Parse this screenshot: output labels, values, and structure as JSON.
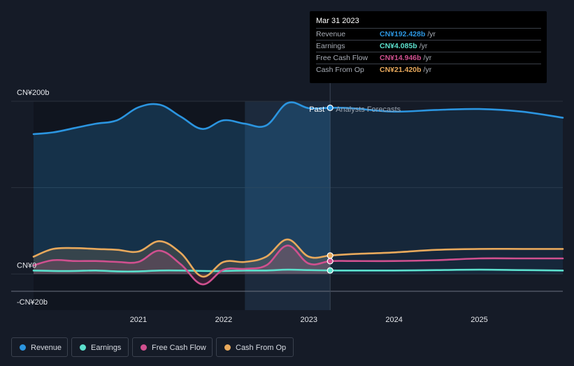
{
  "chart_data": {
    "type": "area",
    "title": "",
    "y_ticks": [
      {
        "label": "CN¥200b",
        "value": 200
      },
      {
        "label": "CN¥0",
        "value": 0
      },
      {
        "label": "-CN¥20b",
        "value": -20
      }
    ],
    "x_ticks": [
      {
        "label": "2021",
        "value": 2021.0
      },
      {
        "label": "2022",
        "value": 2022.0
      },
      {
        "label": "2023",
        "value": 2023.0
      },
      {
        "label": "2024",
        "value": 2024.0
      },
      {
        "label": "2025",
        "value": 2025.0
      }
    ],
    "xlim": [
      2019.77,
      2025.98
    ],
    "ylim": [
      -20,
      200
    ],
    "past_label": "Past",
    "forecast_label": "Analysts Forecasts",
    "divider_x": 2023.25,
    "highlight_start": 2022.25,
    "past_dark_end": 2022.25,
    "series": [
      {
        "key": "revenue",
        "name": "Revenue",
        "color": "#2b95e0",
        "x": [
          2019.77,
          2020.0,
          2020.25,
          2020.5,
          2020.75,
          2021.0,
          2021.25,
          2021.5,
          2021.75,
          2022.0,
          2022.25,
          2022.5,
          2022.75,
          2023.0,
          2023.25,
          2023.5,
          2024.0,
          2024.5,
          2025.0,
          2025.5,
          2025.98
        ],
        "y": [
          162,
          164,
          169,
          174,
          178,
          193,
          196,
          182,
          168,
          178,
          174,
          172,
          198,
          192,
          192.4,
          192,
          188,
          190,
          191,
          188,
          181
        ]
      },
      {
        "key": "earnings",
        "name": "Earnings",
        "color": "#5ce0cd",
        "x": [
          2019.77,
          2020.0,
          2020.25,
          2020.5,
          2020.75,
          2021.0,
          2021.25,
          2021.5,
          2021.75,
          2022.0,
          2022.25,
          2022.5,
          2022.75,
          2023.0,
          2023.25,
          2023.5,
          2024.0,
          2024.5,
          2025.0,
          2025.5,
          2025.98
        ],
        "y": [
          4,
          3.5,
          3.5,
          4,
          3,
          3,
          4,
          4,
          3.5,
          3.5,
          4,
          4,
          5,
          4.5,
          4.1,
          4,
          4,
          4.5,
          5,
          4.5,
          4
        ]
      },
      {
        "key": "fcf",
        "name": "Free Cash Flow",
        "color": "#d0508f",
        "x": [
          2019.77,
          2020.0,
          2020.25,
          2020.5,
          2020.75,
          2021.0,
          2021.25,
          2021.5,
          2021.75,
          2022.0,
          2022.25,
          2022.5,
          2022.75,
          2023.0,
          2023.25,
          2023.5,
          2024.0,
          2024.5,
          2025.0,
          2025.5,
          2025.98
        ],
        "y": [
          10,
          16,
          15,
          15,
          14,
          14,
          27,
          11,
          -12,
          5,
          6,
          10,
          33,
          12,
          14.9,
          15,
          15,
          16,
          18,
          18,
          18
        ]
      },
      {
        "key": "cfo",
        "name": "Cash From Op",
        "color": "#e8a95c",
        "x": [
          2019.77,
          2020.0,
          2020.25,
          2020.5,
          2020.75,
          2021.0,
          2021.25,
          2021.5,
          2021.75,
          2022.0,
          2022.25,
          2022.5,
          2022.75,
          2023.0,
          2023.25,
          2023.5,
          2024.0,
          2024.5,
          2025.0,
          2025.5,
          2025.98
        ],
        "y": [
          20,
          29,
          30,
          29,
          28,
          26,
          38,
          24,
          -3,
          14,
          14,
          20,
          40,
          20,
          21.4,
          23,
          25,
          28,
          29,
          29,
          29
        ]
      }
    ]
  },
  "tooltip": {
    "date": "Mar 31 2023",
    "rows": [
      {
        "label": "Revenue",
        "value": "CN¥192.428b",
        "unit": "/yr",
        "color": "#2b95e0"
      },
      {
        "label": "Earnings",
        "value": "CN¥4.085b",
        "unit": "/yr",
        "color": "#5ce0cd"
      },
      {
        "label": "Free Cash Flow",
        "value": "CN¥14.946b",
        "unit": "/yr",
        "color": "#d0508f"
      },
      {
        "label": "Cash From Op",
        "value": "CN¥21.420b",
        "unit": "/yr",
        "color": "#e8a95c"
      }
    ]
  },
  "legend": [
    {
      "label": "Revenue",
      "color": "#2b95e0"
    },
    {
      "label": "Earnings",
      "color": "#5ce0cd"
    },
    {
      "label": "Free Cash Flow",
      "color": "#d0508f"
    },
    {
      "label": "Cash From Op",
      "color": "#e8a95c"
    }
  ]
}
